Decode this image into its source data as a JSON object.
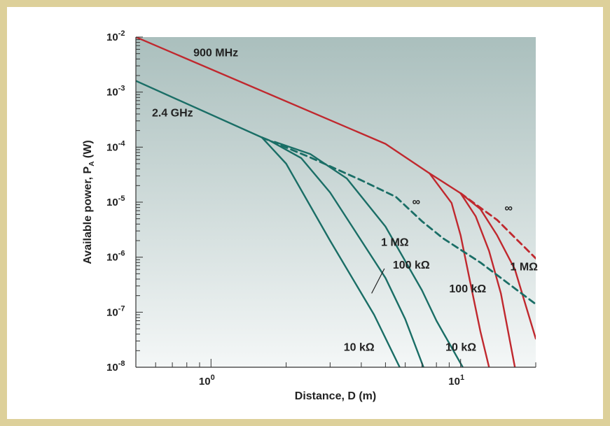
{
  "chart_data": {
    "type": "line",
    "xlabel": "Distance, D (m)",
    "ylabel_main": "Available power, P",
    "ylabel_sub": "A",
    "ylabel_unit": " (W)",
    "x_scale": "log",
    "y_scale": "log",
    "xlim": [
      0.5,
      20
    ],
    "ylim": [
      1e-08,
      0.01
    ],
    "x_ticks": [
      {
        "value": 1,
        "base": "10",
        "exp": "0"
      },
      {
        "value": 10,
        "base": "10",
        "exp": "1"
      }
    ],
    "y_ticks": [
      {
        "value": 0.01,
        "base": "10",
        "exp": "-2"
      },
      {
        "value": 0.001,
        "base": "10",
        "exp": "-3"
      },
      {
        "value": 0.0001,
        "base": "10",
        "exp": "-4"
      },
      {
        "value": 1e-05,
        "base": "10",
        "exp": "-5"
      },
      {
        "value": 1e-06,
        "base": "10",
        "exp": "-6"
      },
      {
        "value": 1e-07,
        "base": "10",
        "exp": "-7"
      },
      {
        "value": 1e-08,
        "base": "10",
        "exp": "-8"
      }
    ],
    "grid": false,
    "colors": {
      "ghz": "#1a6e66",
      "mhz": "#c0282e",
      "bg_top": "#aabfbd",
      "bg_bottom": "#f4f7f7"
    },
    "series": [
      {
        "group": "900 MHz",
        "dashed": false,
        "color": "mhz",
        "points": [
          [
            0.5,
            0.01
          ],
          [
            5,
            0.000115
          ],
          [
            7.5,
            3.35e-05
          ],
          [
            10,
            1.45e-05
          ],
          [
            12,
            7.5e-06
          ]
        ]
      },
      {
        "group": "900 MHz",
        "load": "∞",
        "dashed": true,
        "color": "mhz",
        "points": [
          [
            10,
            1.45e-05
          ],
          [
            14,
            4.75e-06
          ],
          [
            20,
            9.5e-07
          ]
        ]
      },
      {
        "group": "900 MHz",
        "load": "1 MΩ",
        "dashed": false,
        "color": "mhz",
        "points": [
          [
            12,
            7.5e-06
          ],
          [
            14,
            2.5e-06
          ],
          [
            16.5,
            6e-07
          ],
          [
            20,
            3.3e-08
          ]
        ]
      },
      {
        "group": "900 MHz",
        "load": "100 kΩ",
        "dashed": false,
        "color": "mhz",
        "points": [
          [
            10,
            1.45e-05
          ],
          [
            11.5,
            5.5e-06
          ],
          [
            13,
            1.3e-06
          ],
          [
            14.5,
            2.2e-07
          ],
          [
            16.5,
            1e-08
          ]
        ]
      },
      {
        "group": "900 MHz",
        "load": "10 kΩ",
        "dashed": false,
        "color": "mhz",
        "points": [
          [
            7.5,
            3.35e-05
          ],
          [
            9.2,
            9.65e-06
          ],
          [
            10,
            2.5e-06
          ],
          [
            11,
            3e-07
          ],
          [
            12,
            4.5e-08
          ],
          [
            13,
            1e-08
          ]
        ]
      },
      {
        "group": "2.4 GHz",
        "dashed": false,
        "color": "ghz",
        "points": [
          [
            0.5,
            0.0016
          ],
          [
            1.6,
            0.00015
          ]
        ]
      },
      {
        "group": "2.4 GHz",
        "load": "∞",
        "dashed": true,
        "color": "ghz",
        "points": [
          [
            1.6,
            0.00015
          ],
          [
            2.5,
            6.5e-05
          ],
          [
            4,
            2.5e-05
          ],
          [
            5.5,
            1.25e-05
          ],
          [
            7,
            4.5e-06
          ],
          [
            8.5,
            2.2e-06
          ],
          [
            12,
            8e-07
          ],
          [
            20,
            1.4e-07
          ]
        ]
      },
      {
        "group": "2.4 GHz",
        "load": "1 MΩ",
        "dashed": false,
        "color": "ghz",
        "points": [
          [
            1.8,
            0.000125
          ],
          [
            2.5,
            7.5e-05
          ],
          [
            3.5,
            2.7e-05
          ],
          [
            5,
            3.6e-06
          ],
          [
            7,
            2.5e-07
          ],
          [
            8,
            7e-08
          ],
          [
            10.2,
            1e-08
          ]
        ]
      },
      {
        "group": "2.4 GHz",
        "load": "100 kΩ",
        "dashed": false,
        "color": "ghz",
        "points": [
          [
            1.7,
            0.000135
          ],
          [
            2.3,
            6.3e-05
          ],
          [
            3,
            1.5e-05
          ],
          [
            5,
            4.2e-07
          ],
          [
            6,
            7.5e-08
          ],
          [
            7.1,
            1e-08
          ]
        ]
      },
      {
        "group": "2.4 GHz",
        "load": "10 kΩ",
        "dashed": false,
        "color": "ghz",
        "points": [
          [
            1.6,
            0.00015
          ],
          [
            2,
            5e-05
          ],
          [
            3,
            2e-06
          ],
          [
            4.5,
            9e-08
          ],
          [
            5.7,
            1e-08
          ]
        ]
      }
    ],
    "annotations": [
      {
        "id": "mhz",
        "text": "900 MHz",
        "x": 0.85,
        "y": 0.0045
      },
      {
        "id": "ghz",
        "text": "2.4 GHz",
        "x": 0.58,
        "y": 0.00036
      },
      {
        "id": "inf_ghz",
        "text": "∞",
        "x": 6.4,
        "y": 8.8e-06
      },
      {
        "id": "inf_mhz",
        "text": "∞",
        "x": 15,
        "y": 6.7e-06
      },
      {
        "id": "ghz_1m",
        "text": "1 MΩ",
        "x": 4.8,
        "y": 1.6e-06
      },
      {
        "id": "ghz_100k",
        "text": "100 kΩ",
        "x": 5.35,
        "y": 6.2e-07
      },
      {
        "id": "ghz_10k",
        "text": "10 kΩ",
        "x": 3.4,
        "y": 2e-08
      },
      {
        "id": "mhz_1m",
        "text": "1 MΩ",
        "x": 15.8,
        "y": 5.8e-07
      },
      {
        "id": "mhz_100k",
        "text": "100 kΩ",
        "x": 9,
        "y": 2.3e-07
      },
      {
        "id": "mhz_10k",
        "text": "10 kΩ",
        "x": 8.7,
        "y": 2e-08
      }
    ]
  }
}
